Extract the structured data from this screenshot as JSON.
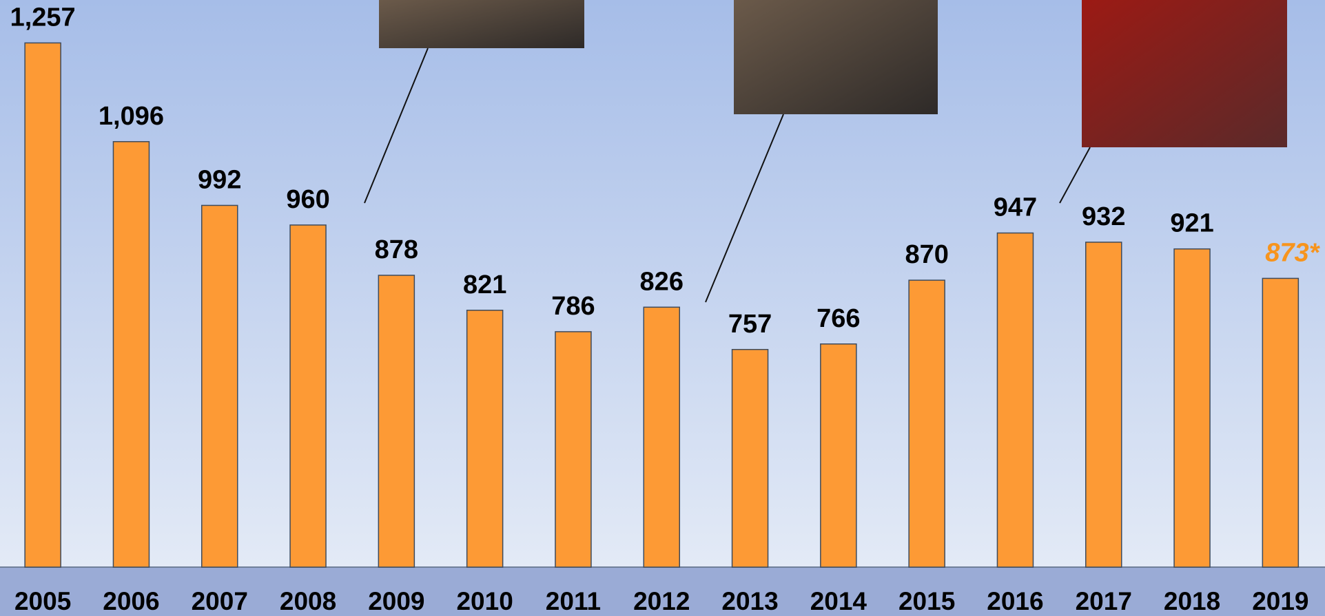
{
  "chart_data": {
    "type": "bar",
    "categories": [
      "2005",
      "2006",
      "2007",
      "2008",
      "2009",
      "2010",
      "2011",
      "2012",
      "2013",
      "2014",
      "2015",
      "2016",
      "2017",
      "2018",
      "2019"
    ],
    "values": [
      1257,
      1096,
      992,
      960,
      878,
      821,
      786,
      826,
      757,
      766,
      870,
      947,
      932,
      921,
      873
    ],
    "value_labels": [
      "1,257",
      "1,096",
      "992",
      "960",
      "878",
      "821",
      "786",
      "826",
      "757",
      "766",
      "870",
      "947",
      "932",
      "921",
      "873*"
    ],
    "color": "#fd9a35",
    "ylim": [
      402,
      1327
    ]
  }
}
